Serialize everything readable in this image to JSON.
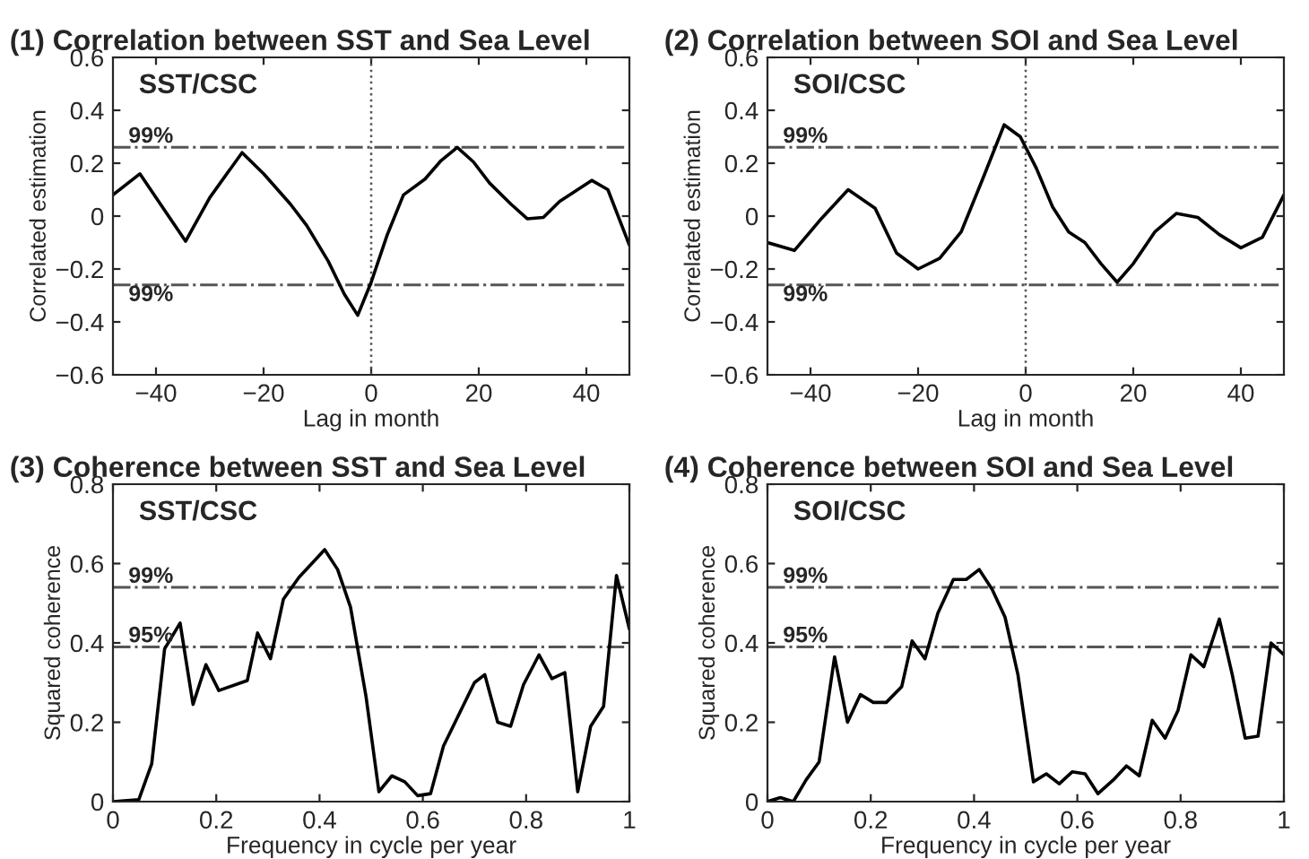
{
  "chart_data": [
    {
      "type": "line",
      "title": "(1) Correlation between SST and Sea Level",
      "xlabel": "Lag in month",
      "ylabel": "Correlated estimation",
      "annotations": [
        "SST/CSC",
        {
          "text": "99%",
          "y": 0.26
        },
        {
          "text": "99%",
          "y": -0.26
        }
      ],
      "x": [
        -48,
        -43,
        -34.5,
        -30,
        -24,
        -20,
        -15,
        -12,
        -8,
        -5,
        -2.5,
        0,
        3,
        6,
        10,
        13,
        16,
        19,
        22,
        26,
        29,
        32,
        35,
        38,
        41,
        44,
        48
      ],
      "series": [
        {
          "color": "#000000",
          "values": [
            0.08,
            0.16,
            -0.095,
            0.07,
            0.24,
            0.16,
            0.045,
            -0.035,
            -0.17,
            -0.295,
            -0.375,
            -0.25,
            -0.07,
            0.08,
            0.14,
            0.21,
            0.26,
            0.205,
            0.125,
            0.045,
            -0.01,
            -0.005,
            0.055,
            0.095,
            0.135,
            0.1,
            -0.11
          ]
        }
      ],
      "xlim": [
        -48,
        48
      ],
      "xticks": [
        -40,
        -20,
        0,
        20,
        40
      ],
      "ylim": [
        -0.6,
        0.6
      ],
      "yticks": [
        -0.6,
        -0.4,
        -0.2,
        0,
        0.2,
        0.4,
        0.6
      ],
      "ref_lines": [
        {
          "axis": "y",
          "value": 0.26,
          "color": "#555555",
          "line_style": "dashdot"
        },
        {
          "axis": "y",
          "value": -0.26,
          "color": "#555555",
          "line_style": "dashdot"
        },
        {
          "axis": "x",
          "value": 0,
          "color": "#555555",
          "line_style": "dotted"
        }
      ],
      "grid": false
    },
    {
      "type": "line",
      "title": "(2) Correlation between SOI and Sea Level",
      "xlabel": "Lag in month",
      "ylabel": "Correlated estimation",
      "annotations": [
        "SOI/CSC",
        {
          "text": "99%",
          "y": 0.26
        },
        {
          "text": "99%",
          "y": -0.26
        }
      ],
      "x": [
        -48,
        -43,
        -38,
        -33,
        -28,
        -24,
        -20,
        -16,
        -12,
        -8,
        -4,
        -1,
        2,
        5,
        8,
        11,
        14,
        17,
        20,
        24,
        28,
        32,
        36,
        40,
        44,
        48
      ],
      "series": [
        {
          "color": "#000000",
          "values": [
            -0.1,
            -0.13,
            -0.01,
            0.1,
            0.03,
            -0.14,
            -0.2,
            -0.16,
            -0.06,
            0.14,
            0.345,
            0.3,
            0.18,
            0.035,
            -0.06,
            -0.1,
            -0.18,
            -0.25,
            -0.18,
            -0.06,
            0.01,
            -0.005,
            -0.07,
            -0.12,
            -0.08,
            0.08
          ]
        }
      ],
      "xlim": [
        -48,
        48
      ],
      "xticks": [
        -40,
        -20,
        0,
        20,
        40
      ],
      "ylim": [
        -0.6,
        0.6
      ],
      "yticks": [
        -0.6,
        -0.4,
        -0.2,
        0,
        0.2,
        0.4,
        0.6
      ],
      "ref_lines": [
        {
          "axis": "y",
          "value": 0.26,
          "color": "#555555",
          "line_style": "dashdot"
        },
        {
          "axis": "y",
          "value": -0.26,
          "color": "#555555",
          "line_style": "dashdot"
        },
        {
          "axis": "x",
          "value": 0,
          "color": "#555555",
          "line_style": "dotted"
        }
      ],
      "grid": false
    },
    {
      "type": "line",
      "title": "(3) Coherence between SST and Sea Level",
      "xlabel": "Frequency in cycle per year",
      "ylabel": "Squared coherence",
      "annotations": [
        "SST/CSC",
        {
          "text": "99%",
          "y": 0.54
        },
        {
          "text": "95%",
          "y": 0.39
        }
      ],
      "x": [
        0,
        0.05,
        0.075,
        0.1,
        0.13,
        0.155,
        0.18,
        0.205,
        0.26,
        0.28,
        0.305,
        0.33,
        0.36,
        0.41,
        0.435,
        0.46,
        0.49,
        0.515,
        0.54,
        0.565,
        0.59,
        0.615,
        0.64,
        0.7,
        0.72,
        0.745,
        0.77,
        0.795,
        0.825,
        0.85,
        0.875,
        0.9,
        0.925,
        0.95,
        0.975,
        1
      ],
      "series": [
        {
          "color": "#000000",
          "values": [
            0,
            0.005,
            0.095,
            0.385,
            0.45,
            0.245,
            0.345,
            0.28,
            0.305,
            0.425,
            0.36,
            0.51,
            0.565,
            0.635,
            0.585,
            0.49,
            0.265,
            0.025,
            0.065,
            0.05,
            0.015,
            0.02,
            0.14,
            0.3,
            0.32,
            0.2,
            0.19,
            0.295,
            0.37,
            0.31,
            0.325,
            0.025,
            0.19,
            0.24,
            0.57,
            0.435
          ]
        }
      ],
      "xlim": [
        0,
        1
      ],
      "xticks": [
        0,
        0.2,
        0.4,
        0.6,
        0.8,
        1
      ],
      "ylim": [
        0,
        0.8
      ],
      "yticks": [
        0,
        0.2,
        0.4,
        0.6,
        0.8
      ],
      "ref_lines": [
        {
          "axis": "y",
          "value": 0.54,
          "color": "#555555",
          "line_style": "dashdot"
        },
        {
          "axis": "y",
          "value": 0.39,
          "color": "#555555",
          "line_style": "dashdot"
        }
      ],
      "grid": false
    },
    {
      "type": "line",
      "title": "(4) Coherence between SOI and Sea Level",
      "xlabel": "Frequency in cycle per year",
      "ylabel": "Squared coherence",
      "annotations": [
        "SOI/CSC",
        {
          "text": "99%",
          "y": 0.54
        },
        {
          "text": "95%",
          "y": 0.39
        }
      ],
      "x": [
        0,
        0.025,
        0.05,
        0.075,
        0.1,
        0.13,
        0.155,
        0.18,
        0.205,
        0.23,
        0.26,
        0.28,
        0.305,
        0.33,
        0.36,
        0.385,
        0.41,
        0.435,
        0.46,
        0.485,
        0.515,
        0.54,
        0.565,
        0.59,
        0.615,
        0.64,
        0.67,
        0.695,
        0.72,
        0.745,
        0.77,
        0.795,
        0.82,
        0.845,
        0.875,
        0.9,
        0.925,
        0.95,
        0.975,
        1
      ],
      "series": [
        {
          "color": "#000000",
          "values": [
            0,
            0.01,
            0,
            0.055,
            0.1,
            0.365,
            0.2,
            0.27,
            0.25,
            0.25,
            0.29,
            0.405,
            0.36,
            0.475,
            0.56,
            0.56,
            0.585,
            0.535,
            0.465,
            0.32,
            0.05,
            0.07,
            0.045,
            0.075,
            0.07,
            0.02,
            0.055,
            0.09,
            0.065,
            0.205,
            0.16,
            0.23,
            0.37,
            0.34,
            0.46,
            0.32,
            0.16,
            0.165,
            0.4,
            0.37
          ]
        }
      ],
      "xlim": [
        0,
        1
      ],
      "xticks": [
        0,
        0.2,
        0.4,
        0.6,
        0.8,
        1
      ],
      "ylim": [
        0,
        0.8
      ],
      "yticks": [
        0,
        0.2,
        0.4,
        0.6,
        0.8
      ],
      "ref_lines": [
        {
          "axis": "y",
          "value": 0.54,
          "color": "#555555",
          "line_style": "dashdot"
        },
        {
          "axis": "y",
          "value": 0.39,
          "color": "#555555",
          "line_style": "dashdot"
        }
      ],
      "grid": false
    }
  ]
}
